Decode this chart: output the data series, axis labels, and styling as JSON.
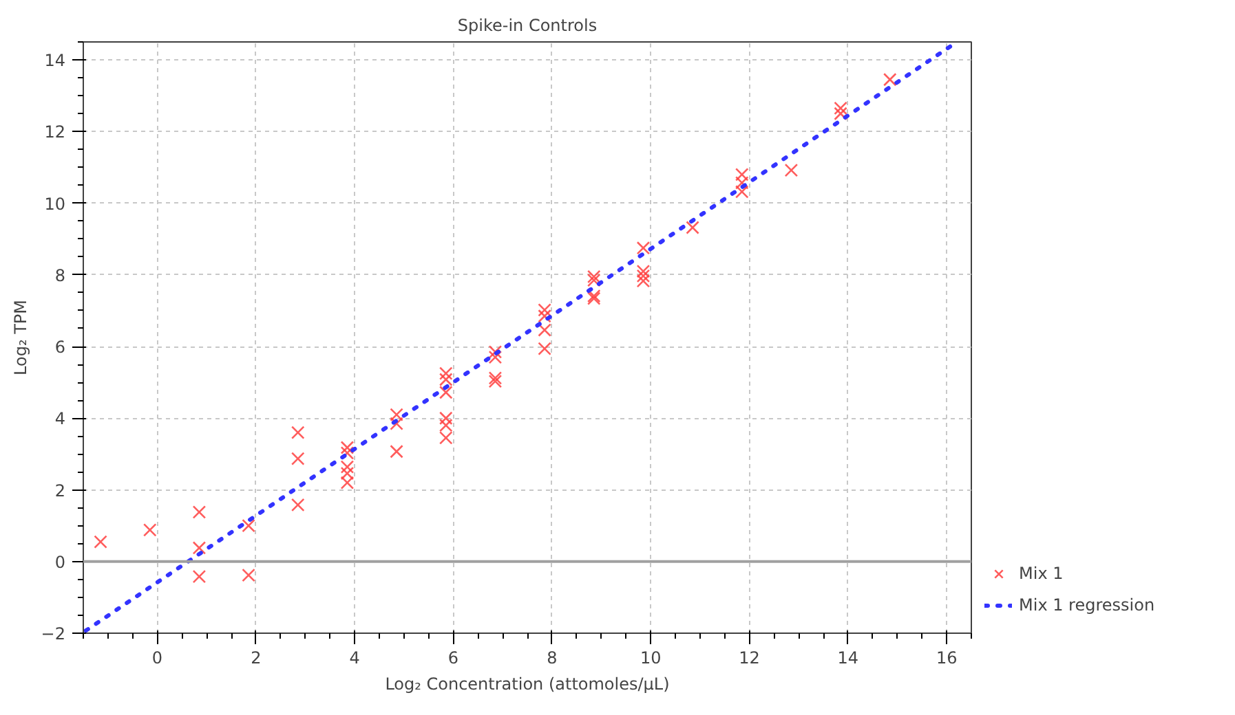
{
  "chart_data": {
    "type": "scatter",
    "title": "Spike-in Controls",
    "xlabel": "Log₂ Concentration (attomoles/μL)",
    "ylabel": "Log₂ TPM",
    "xlim": [
      -1.5,
      16.5
    ],
    "ylim": [
      -2,
      14.5
    ],
    "xticks": [
      0,
      2,
      4,
      6,
      8,
      10,
      12,
      14,
      16
    ],
    "yticks": [
      -2,
      0,
      2,
      4,
      6,
      8,
      10,
      12,
      14
    ],
    "grid": true,
    "legend": "bottom right",
    "ref_lines": [
      {
        "axis": "y",
        "value": 0,
        "color": "#a0a0a0"
      }
    ],
    "series": [
      {
        "name": "Mix 1",
        "marker": "cross",
        "color": "#ff4040",
        "x": [
          -1.15,
          -0.15,
          0.85,
          0.85,
          0.85,
          1.85,
          1.85,
          2.85,
          2.85,
          2.85,
          3.85,
          3.85,
          3.85,
          3.85,
          3.85,
          4.85,
          4.85,
          4.85,
          5.85,
          5.85,
          5.85,
          5.85,
          5.85,
          5.85,
          6.85,
          6.85,
          6.85,
          6.85,
          7.85,
          7.85,
          7.85,
          7.85,
          8.85,
          8.85,
          8.85,
          8.85,
          9.85,
          9.85,
          9.85,
          9.85,
          10.85,
          11.85,
          11.85,
          11.85,
          12.85,
          13.85,
          13.85,
          14.85
        ],
        "values": [
          0.55,
          0.88,
          1.38,
          0.38,
          -0.42,
          1.0,
          -0.38,
          3.6,
          2.87,
          1.58,
          3.18,
          3.03,
          2.64,
          2.46,
          2.2,
          4.1,
          3.85,
          3.07,
          5.25,
          5.08,
          4.72,
          4.0,
          3.8,
          3.45,
          5.85,
          5.7,
          5.12,
          5.03,
          7.02,
          6.85,
          6.46,
          5.94,
          7.95,
          7.85,
          7.41,
          7.34,
          8.75,
          8.1,
          7.97,
          7.83,
          9.32,
          10.8,
          10.57,
          10.32,
          10.92,
          12.65,
          12.5,
          13.45
        ]
      },
      {
        "name": "Mix 1 regression",
        "type": "line",
        "line_style": "dotted",
        "color": "#3333ff",
        "x": [
          -1.45,
          16.1
        ],
        "values": [
          -1.93,
          14.4
        ]
      }
    ]
  }
}
